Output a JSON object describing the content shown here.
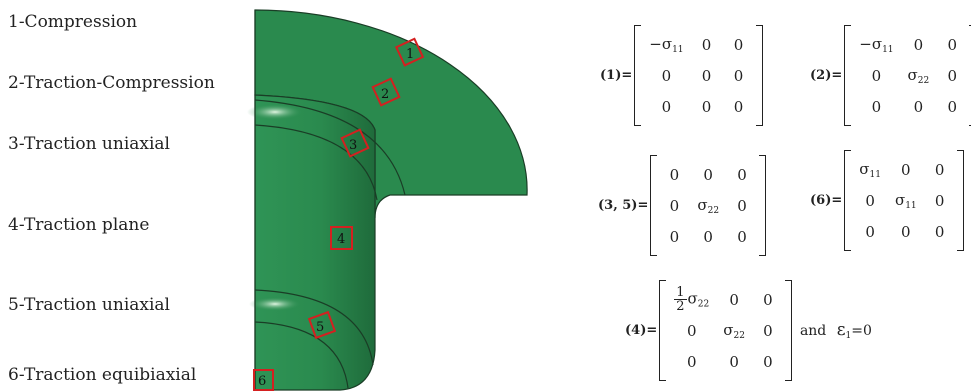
{
  "zone_labels": [
    "1-Compression",
    "2-Traction-Compression",
    "3-Traction uniaxial",
    "4-Traction plane",
    "5-Traction uniaxial",
    "6-Traction equibiaxial"
  ],
  "markers": [
    "1",
    "2",
    "3",
    "4",
    "5",
    "6"
  ],
  "colors": {
    "part": "#2a8a4e",
    "part_dark": "#1f6b3b",
    "marker": "#d42020"
  },
  "matrices": {
    "m1": {
      "label": "(1)=",
      "rows": [
        [
          "−σ",
          "0",
          "0"
        ],
        [
          "0",
          "0",
          "0"
        ],
        [
          "0",
          "0",
          "0"
        ]
      ],
      "subs": [
        [
          "11",
          "",
          ""
        ],
        [
          "",
          "",
          ""
        ],
        [
          "",
          "",
          ""
        ]
      ]
    },
    "m2": {
      "label": "(2)=",
      "rows": [
        [
          "−σ",
          "0",
          "0"
        ],
        [
          "0",
          "σ",
          "0"
        ],
        [
          "0",
          "0",
          "0"
        ]
      ],
      "subs": [
        [
          "11",
          "",
          ""
        ],
        [
          "",
          "22",
          ""
        ],
        [
          "",
          "",
          ""
        ]
      ]
    },
    "m35": {
      "label": "(3, 5)=",
      "rows": [
        [
          "0",
          "0",
          "0"
        ],
        [
          "0",
          "σ",
          "0"
        ],
        [
          "0",
          "0",
          "0"
        ]
      ],
      "subs": [
        [
          "",
          "",
          ""
        ],
        [
          "",
          "22",
          ""
        ],
        [
          "",
          "",
          ""
        ]
      ]
    },
    "m6": {
      "label": "(6)=",
      "rows": [
        [
          "σ",
          "0",
          "0"
        ],
        [
          "0",
          "σ",
          "0"
        ],
        [
          "0",
          "0",
          "0"
        ]
      ],
      "subs": [
        [
          "11",
          "",
          ""
        ],
        [
          "",
          "11",
          ""
        ],
        [
          "",
          "",
          ""
        ]
      ]
    },
    "m4": {
      "label": "(4)=",
      "frac_num": "1",
      "frac_den": "2",
      "rows": [
        [
          "σ",
          "0",
          "0"
        ],
        [
          "0",
          "σ",
          "0"
        ],
        [
          "0",
          "0",
          "0"
        ]
      ],
      "subs": [
        [
          "22",
          "",
          ""
        ],
        [
          "",
          "22",
          ""
        ],
        [
          "",
          "",
          ""
        ]
      ],
      "suffix": "and",
      "epsilon_expr": "ε",
      "epsilon_sub": "1",
      "epsilon_val": "=0"
    }
  }
}
